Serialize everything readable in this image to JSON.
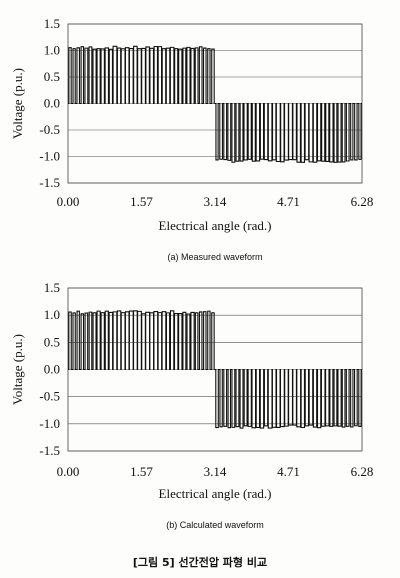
{
  "figure_caption": "[그림 5] 선간전압 파형 비교",
  "chart_data": [
    {
      "type": "line",
      "caption": "(a) Measured waveform",
      "xlabel": "Electrical angle (rad.)",
      "ylabel": "Voltage (p.u.)",
      "xlim": [
        0,
        6.28
      ],
      "ylim": [
        -1.5,
        1.5
      ],
      "x_ticks": [
        "0.00",
        "1.57",
        "3.14",
        "4.71",
        "6.28"
      ],
      "y_ticks": [
        "1.5",
        "1.0",
        "0.5",
        "0.0",
        "-0.5",
        "-1.0",
        "-1.5"
      ],
      "grid": "horizontal",
      "legend": "none",
      "series": [
        {
          "shape": "PWM pulse train",
          "positive_half": {
            "x_start": 0.0,
            "x_end": 3.14,
            "high": 1.05,
            "low": 0.0
          },
          "negative_half": {
            "x_start": 3.14,
            "x_end": 6.28,
            "high": 0.0,
            "low": -1.08
          },
          "pulses_per_half_cycle": 36
        }
      ]
    },
    {
      "type": "line",
      "caption": "(b) Calculated waveform",
      "xlabel": "Electrical angle (rad.)",
      "ylabel": "Voltage (p.u.)",
      "xlim": [
        0,
        6.28
      ],
      "ylim": [
        -1.5,
        1.5
      ],
      "x_ticks": [
        "0.00",
        "1.57",
        "3.14",
        "4.71",
        "6.28"
      ],
      "y_ticks": [
        "1.5",
        "1.0",
        "0.5",
        "0.0",
        "-0.5",
        "-1.0",
        "-1.5"
      ],
      "grid": "horizontal",
      "legend": "none",
      "series": [
        {
          "shape": "PWM pulse train",
          "positive_half": {
            "x_start": 0.0,
            "x_end": 3.14,
            "high": 1.05,
            "low": 0.0
          },
          "negative_half": {
            "x_start": 3.14,
            "x_end": 6.28,
            "high": 0.0,
            "low": -1.05
          },
          "pulses_per_half_cycle": 36
        }
      ]
    }
  ]
}
